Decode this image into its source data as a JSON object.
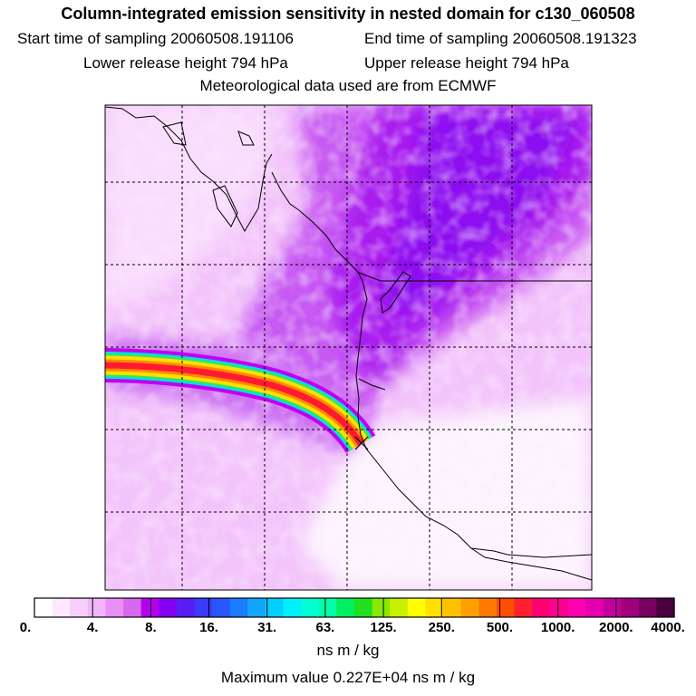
{
  "title": "Column-integrated emission sensitivity in nested domain for c130_060508",
  "start_label": "Start time of sampling 20060508.191106",
  "end_label": "End time of sampling 20060508.191323",
  "lower_label": "Lower release height  794 hPa",
  "upper_label": "Upper release height  794 hPa",
  "met_label": "Meteorological data used are from ECMWF",
  "colorbar": {
    "ticks": [
      "0.",
      "4.",
      "8.",
      "16.",
      "31.",
      "63.",
      "125.",
      "250.",
      "500.",
      "1000.",
      "2000.",
      "4000."
    ],
    "colors": [
      "#ffffff",
      "#fde8fe",
      "#f8cffc",
      "#f1b6fa",
      "#e98ff5",
      "#d768f0",
      "#b500ee",
      "#8300f0",
      "#5a1cf4",
      "#3a3af8",
      "#2a56ff",
      "#1c7cff",
      "#12a6ff",
      "#00d0ff",
      "#00f0ff",
      "#00ffd2",
      "#00ffaa",
      "#00f060",
      "#20e020",
      "#88e800",
      "#c8f000",
      "#ffff00",
      "#ffe000",
      "#ffc000",
      "#ffa000",
      "#ff7800",
      "#ff4e00",
      "#ff2030",
      "#ff0070",
      "#ff0090",
      "#ff00b0",
      "#e400b0",
      "#c4009c",
      "#a0007c",
      "#780060",
      "#4a003c"
    ],
    "unit": "ns m / kg"
  },
  "max_value": "Maximum value  0.227E+04 ns m / kg",
  "colors": {
    "background_pink": "#f3c2fb",
    "light_pink": "#f9e0fd",
    "purple": "#b600ee",
    "violet": "#9a10f6",
    "plume_red": "#ff1030",
    "plume_yellow": "#ffd800",
    "plume_green": "#30e060",
    "plume_cyan": "#00e8ff"
  }
}
